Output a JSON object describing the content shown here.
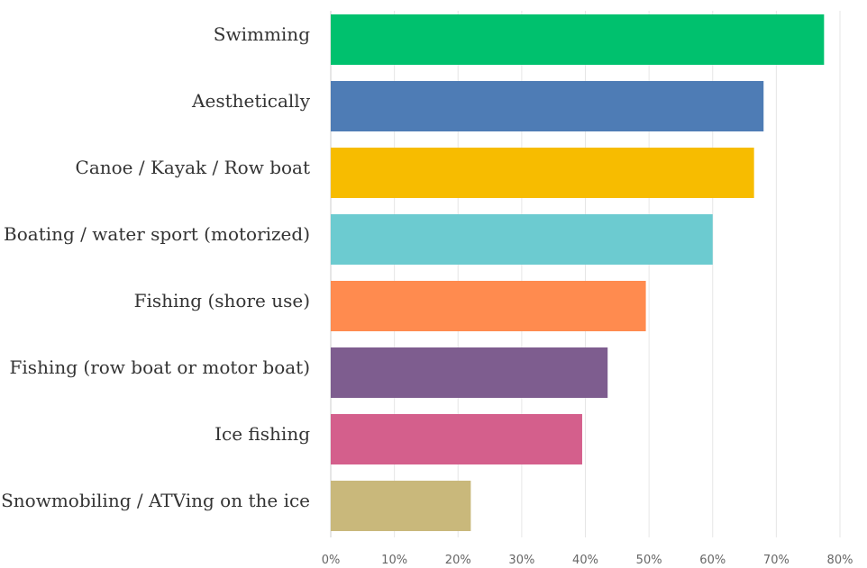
{
  "chart_data": {
    "type": "bar",
    "orientation": "horizontal",
    "categories": [
      "Swimming",
      "Aesthetically",
      "Canoe / Kayak / Row boat",
      "Boating / water sport (motorized)",
      "Fishing (shore use)",
      "Fishing (row boat or motor boat)",
      "Ice fishing",
      "Snowmobiling / ATVing on the ice"
    ],
    "values": [
      77.5,
      68,
      66.5,
      60,
      49.5,
      43.5,
      39.5,
      22
    ],
    "colors": [
      "#00c16e",
      "#4e7cb5",
      "#f7bc00",
      "#6ccbd0",
      "#ff8b4f",
      "#7e5d8f",
      "#d45f8c",
      "#c9b87b"
    ],
    "xlim": [
      0,
      80
    ],
    "ticks": [
      "0%",
      "10%",
      "20%",
      "30%",
      "40%",
      "50%",
      "60%",
      "70%",
      "80%"
    ],
    "grid": true,
    "title": "",
    "xlabel": "",
    "ylabel": ""
  }
}
